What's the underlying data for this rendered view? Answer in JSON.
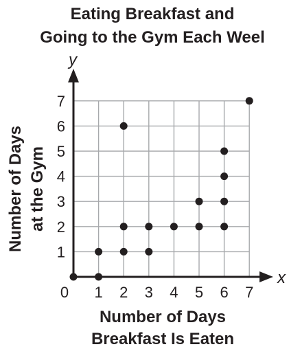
{
  "chart_data": {
    "type": "scatter",
    "title": [
      "Eating Breakfast and",
      "Going to the Gym Each Weel"
    ],
    "xlabel": [
      "Number of Days",
      "Breakfast Is Eaten"
    ],
    "ylabel": [
      "Number of Days",
      "at the Gym"
    ],
    "x_axis_var": "x",
    "y_axis_var": "y",
    "origin_label": "0",
    "xlim": [
      0,
      7
    ],
    "ylim": [
      0,
      7
    ],
    "x_ticks": [
      "1",
      "2",
      "3",
      "4",
      "5",
      "6",
      "7"
    ],
    "y_ticks": [
      "1",
      "2",
      "3",
      "4",
      "5",
      "6",
      "7"
    ],
    "grid": true,
    "point_color": "#231f20",
    "grid_color": "#a7a9ac",
    "points": [
      {
        "x": 0,
        "y": 0
      },
      {
        "x": 1,
        "y": 0
      },
      {
        "x": 1,
        "y": 1
      },
      {
        "x": 2,
        "y": 1
      },
      {
        "x": 2,
        "y": 2
      },
      {
        "x": 2,
        "y": 6
      },
      {
        "x": 3,
        "y": 1
      },
      {
        "x": 3,
        "y": 2
      },
      {
        "x": 4,
        "y": 2
      },
      {
        "x": 5,
        "y": 2
      },
      {
        "x": 5,
        "y": 3
      },
      {
        "x": 6,
        "y": 2
      },
      {
        "x": 6,
        "y": 3
      },
      {
        "x": 6,
        "y": 4
      },
      {
        "x": 6,
        "y": 5
      },
      {
        "x": 7,
        "y": 7
      }
    ]
  }
}
